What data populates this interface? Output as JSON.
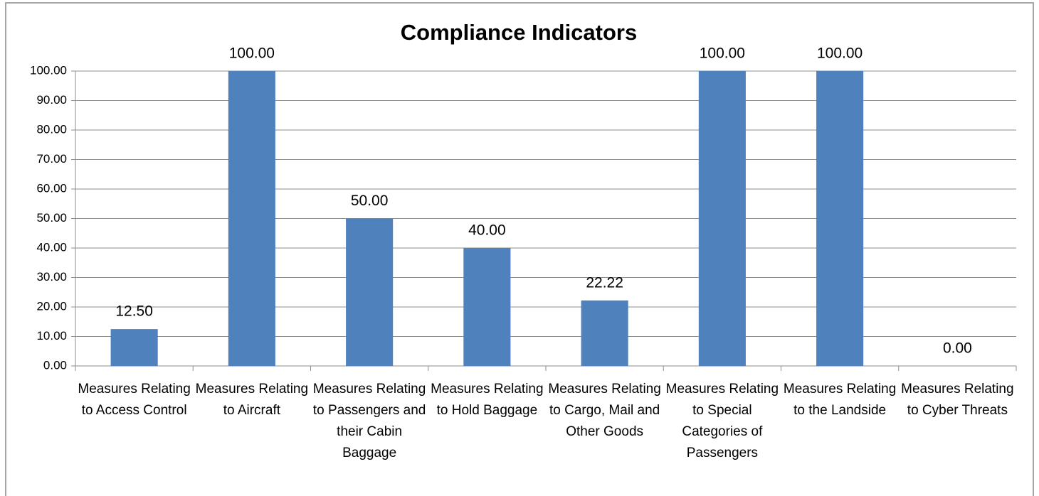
{
  "chart_data": {
    "type": "bar",
    "title": "Compliance Indicators",
    "categories": [
      "Measures Relating to Access Control",
      "Measures Relating to Aircraft",
      "Measures Relating to Passengers and their Cabin Baggage",
      "Measures Relating to Hold Baggage",
      "Measures Relating to Cargo, Mail and Other Goods",
      "Measures Relating to Special Categories of Passengers",
      "Measures Relating to the Landside",
      "Measures Relating to Cyber Threats"
    ],
    "values": [
      12.5,
      100,
      50,
      40,
      22.22,
      100,
      100,
      0
    ],
    "value_labels": [
      "12.50",
      "100.00",
      "50.00",
      "40.00",
      "22.22",
      "100.00",
      "100.00",
      "0.00"
    ],
    "color": "#4f81bd",
    "ylim": [
      0,
      100
    ],
    "yticks": [
      {
        "value": 0,
        "label": "0.00"
      },
      {
        "value": 10,
        "label": "10.00"
      },
      {
        "value": 20,
        "label": "20.00"
      },
      {
        "value": 30,
        "label": "30.00"
      },
      {
        "value": 40,
        "label": "40.00"
      },
      {
        "value": 50,
        "label": "50.00"
      },
      {
        "value": 60,
        "label": "60.00"
      },
      {
        "value": 70,
        "label": "70.00"
      },
      {
        "value": 80,
        "label": "80.00"
      },
      {
        "value": 90,
        "label": "90.00"
      },
      {
        "value": 100,
        "label": "100.00"
      }
    ],
    "grid": true
  }
}
